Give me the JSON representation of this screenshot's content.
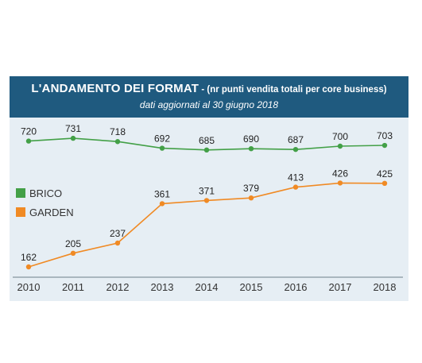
{
  "chart_data": {
    "type": "line",
    "title": "L'ANDAMENTO DEI FORMAT",
    "subtitle_inline": " - (nr punti vendita totali per core business)",
    "subtitle": "dati aggiornati al 30 giugno 2018",
    "x": [
      "2010",
      "2011",
      "2012",
      "2013",
      "2014",
      "2015",
      "2016",
      "2017",
      "2018"
    ],
    "series": [
      {
        "name": "BRICO",
        "color": "#43a047",
        "values": [
          720,
          731,
          718,
          692,
          685,
          690,
          687,
          700,
          703
        ]
      },
      {
        "name": "GARDEN",
        "color": "#f08a24",
        "values": [
          162,
          205,
          237,
          361,
          371,
          379,
          413,
          426,
          425
        ]
      }
    ],
    "legend_position": "left",
    "grid": false
  }
}
